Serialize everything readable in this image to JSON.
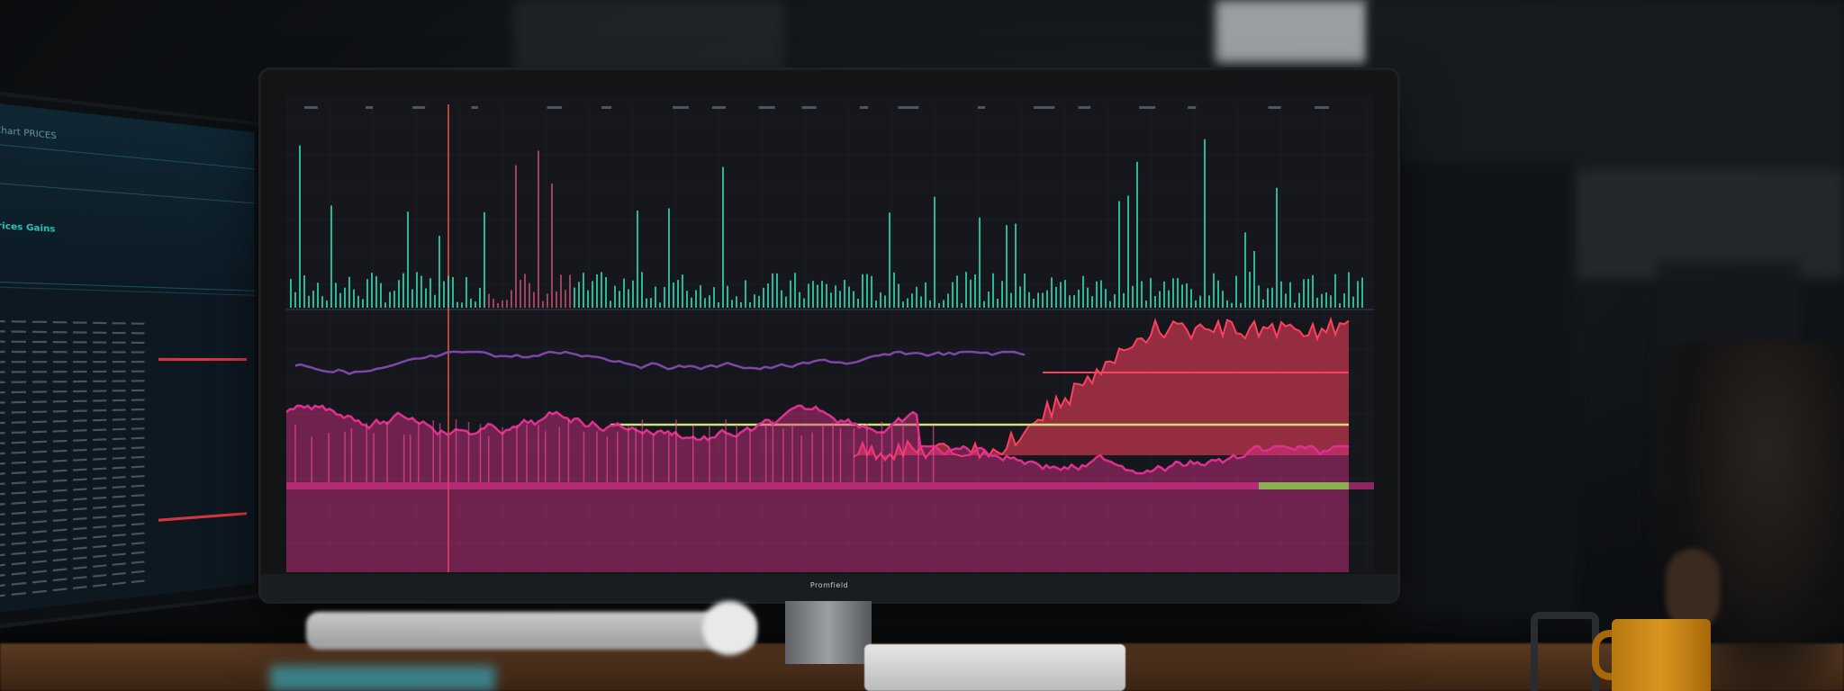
{
  "scene": {
    "description_tag": "photo",
    "main_monitor": {
      "brand_label": "Promfield",
      "colors": {
        "teal": "#2fd3b0",
        "purple": "#8a4bb8",
        "red": "#ff3f5e",
        "magenta": "#e0308f",
        "yellow_line": "#cfe07a",
        "grid": "#2a3140"
      }
    },
    "left_monitor": {
      "title": "Chart PRICES",
      "subtitle": "Prices Gains"
    }
  }
}
